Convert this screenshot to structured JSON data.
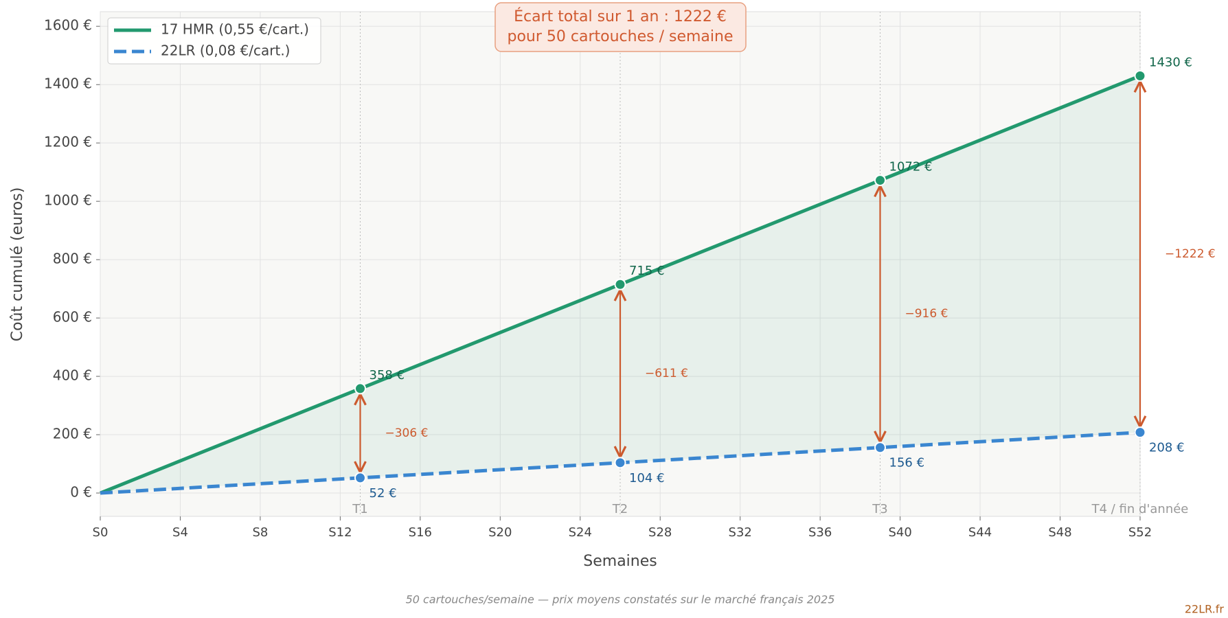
{
  "chart_data": {
    "type": "line",
    "callout": [
      "Écart total sur 1 an : 1222 €",
      "pour 50 cartouches / semaine"
    ],
    "xlabel": "Semaines",
    "ylabel": "Coût cumulé (euros)",
    "footnote": "50 cartouches/semaine — prix moyens constatés sur le marché français 2025",
    "watermark": "22LR.fr",
    "legend": "upper left",
    "grid": true,
    "x": [
      0,
      13,
      26,
      39,
      52
    ],
    "series": [
      {
        "name": "17 HMR (0,55 €/cart.)",
        "color": "#22996e",
        "linestyle": "solid",
        "values": [
          0,
          358,
          715,
          1072,
          1430
        ],
        "value_labels": [
          null,
          "358 €",
          "715 €",
          "1072 €",
          "1430 €"
        ]
      },
      {
        "name": "22LR (0,08 €/cart.)",
        "color": "#3a86d0",
        "linestyle": "dashed",
        "values": [
          0,
          52,
          104,
          156,
          208
        ],
        "value_labels": [
          null,
          "52 €",
          "104 €",
          "156 €",
          "208 €"
        ]
      }
    ],
    "differences": [
      {
        "x": 13,
        "value": -306,
        "label": "−306 €"
      },
      {
        "x": 26,
        "value": -611,
        "label": "−611 €"
      },
      {
        "x": 39,
        "value": -916,
        "label": "−916 €"
      },
      {
        "x": 52,
        "value": -1222,
        "label": "−1222 €"
      }
    ],
    "difference_color": "#cc5a2e",
    "quarters": [
      {
        "value": 13,
        "label": "T1"
      },
      {
        "value": 26,
        "label": "T2"
      },
      {
        "value": 39,
        "label": "T3"
      },
      {
        "value": 52,
        "label": "T4 / fin d'année"
      }
    ],
    "xlim": [
      0,
      52
    ],
    "xticks": [
      {
        "value": 0,
        "label": "S0"
      },
      {
        "value": 4,
        "label": "S4"
      },
      {
        "value": 8,
        "label": "S8"
      },
      {
        "value": 12,
        "label": "S12"
      },
      {
        "value": 16,
        "label": "S16"
      },
      {
        "value": 20,
        "label": "S20"
      },
      {
        "value": 24,
        "label": "S24"
      },
      {
        "value": 28,
        "label": "S28"
      },
      {
        "value": 32,
        "label": "S32"
      },
      {
        "value": 36,
        "label": "S36"
      },
      {
        "value": 40,
        "label": "S40"
      },
      {
        "value": 44,
        "label": "S44"
      },
      {
        "value": 48,
        "label": "S48"
      },
      {
        "value": 52,
        "label": "S52"
      }
    ],
    "ylim": [
      -80,
      1650
    ],
    "yticks": [
      {
        "value": 0,
        "label": "0 €"
      },
      {
        "value": 200,
        "label": "200 €"
      },
      {
        "value": 400,
        "label": "400 €"
      },
      {
        "value": 600,
        "label": "600 €"
      },
      {
        "value": 800,
        "label": "800 €"
      },
      {
        "value": 1000,
        "label": "1000 €"
      },
      {
        "value": 1200,
        "label": "1200 €"
      },
      {
        "value": 1400,
        "label": "1400 €"
      },
      {
        "value": 1600,
        "label": "1600 €"
      }
    ]
  }
}
